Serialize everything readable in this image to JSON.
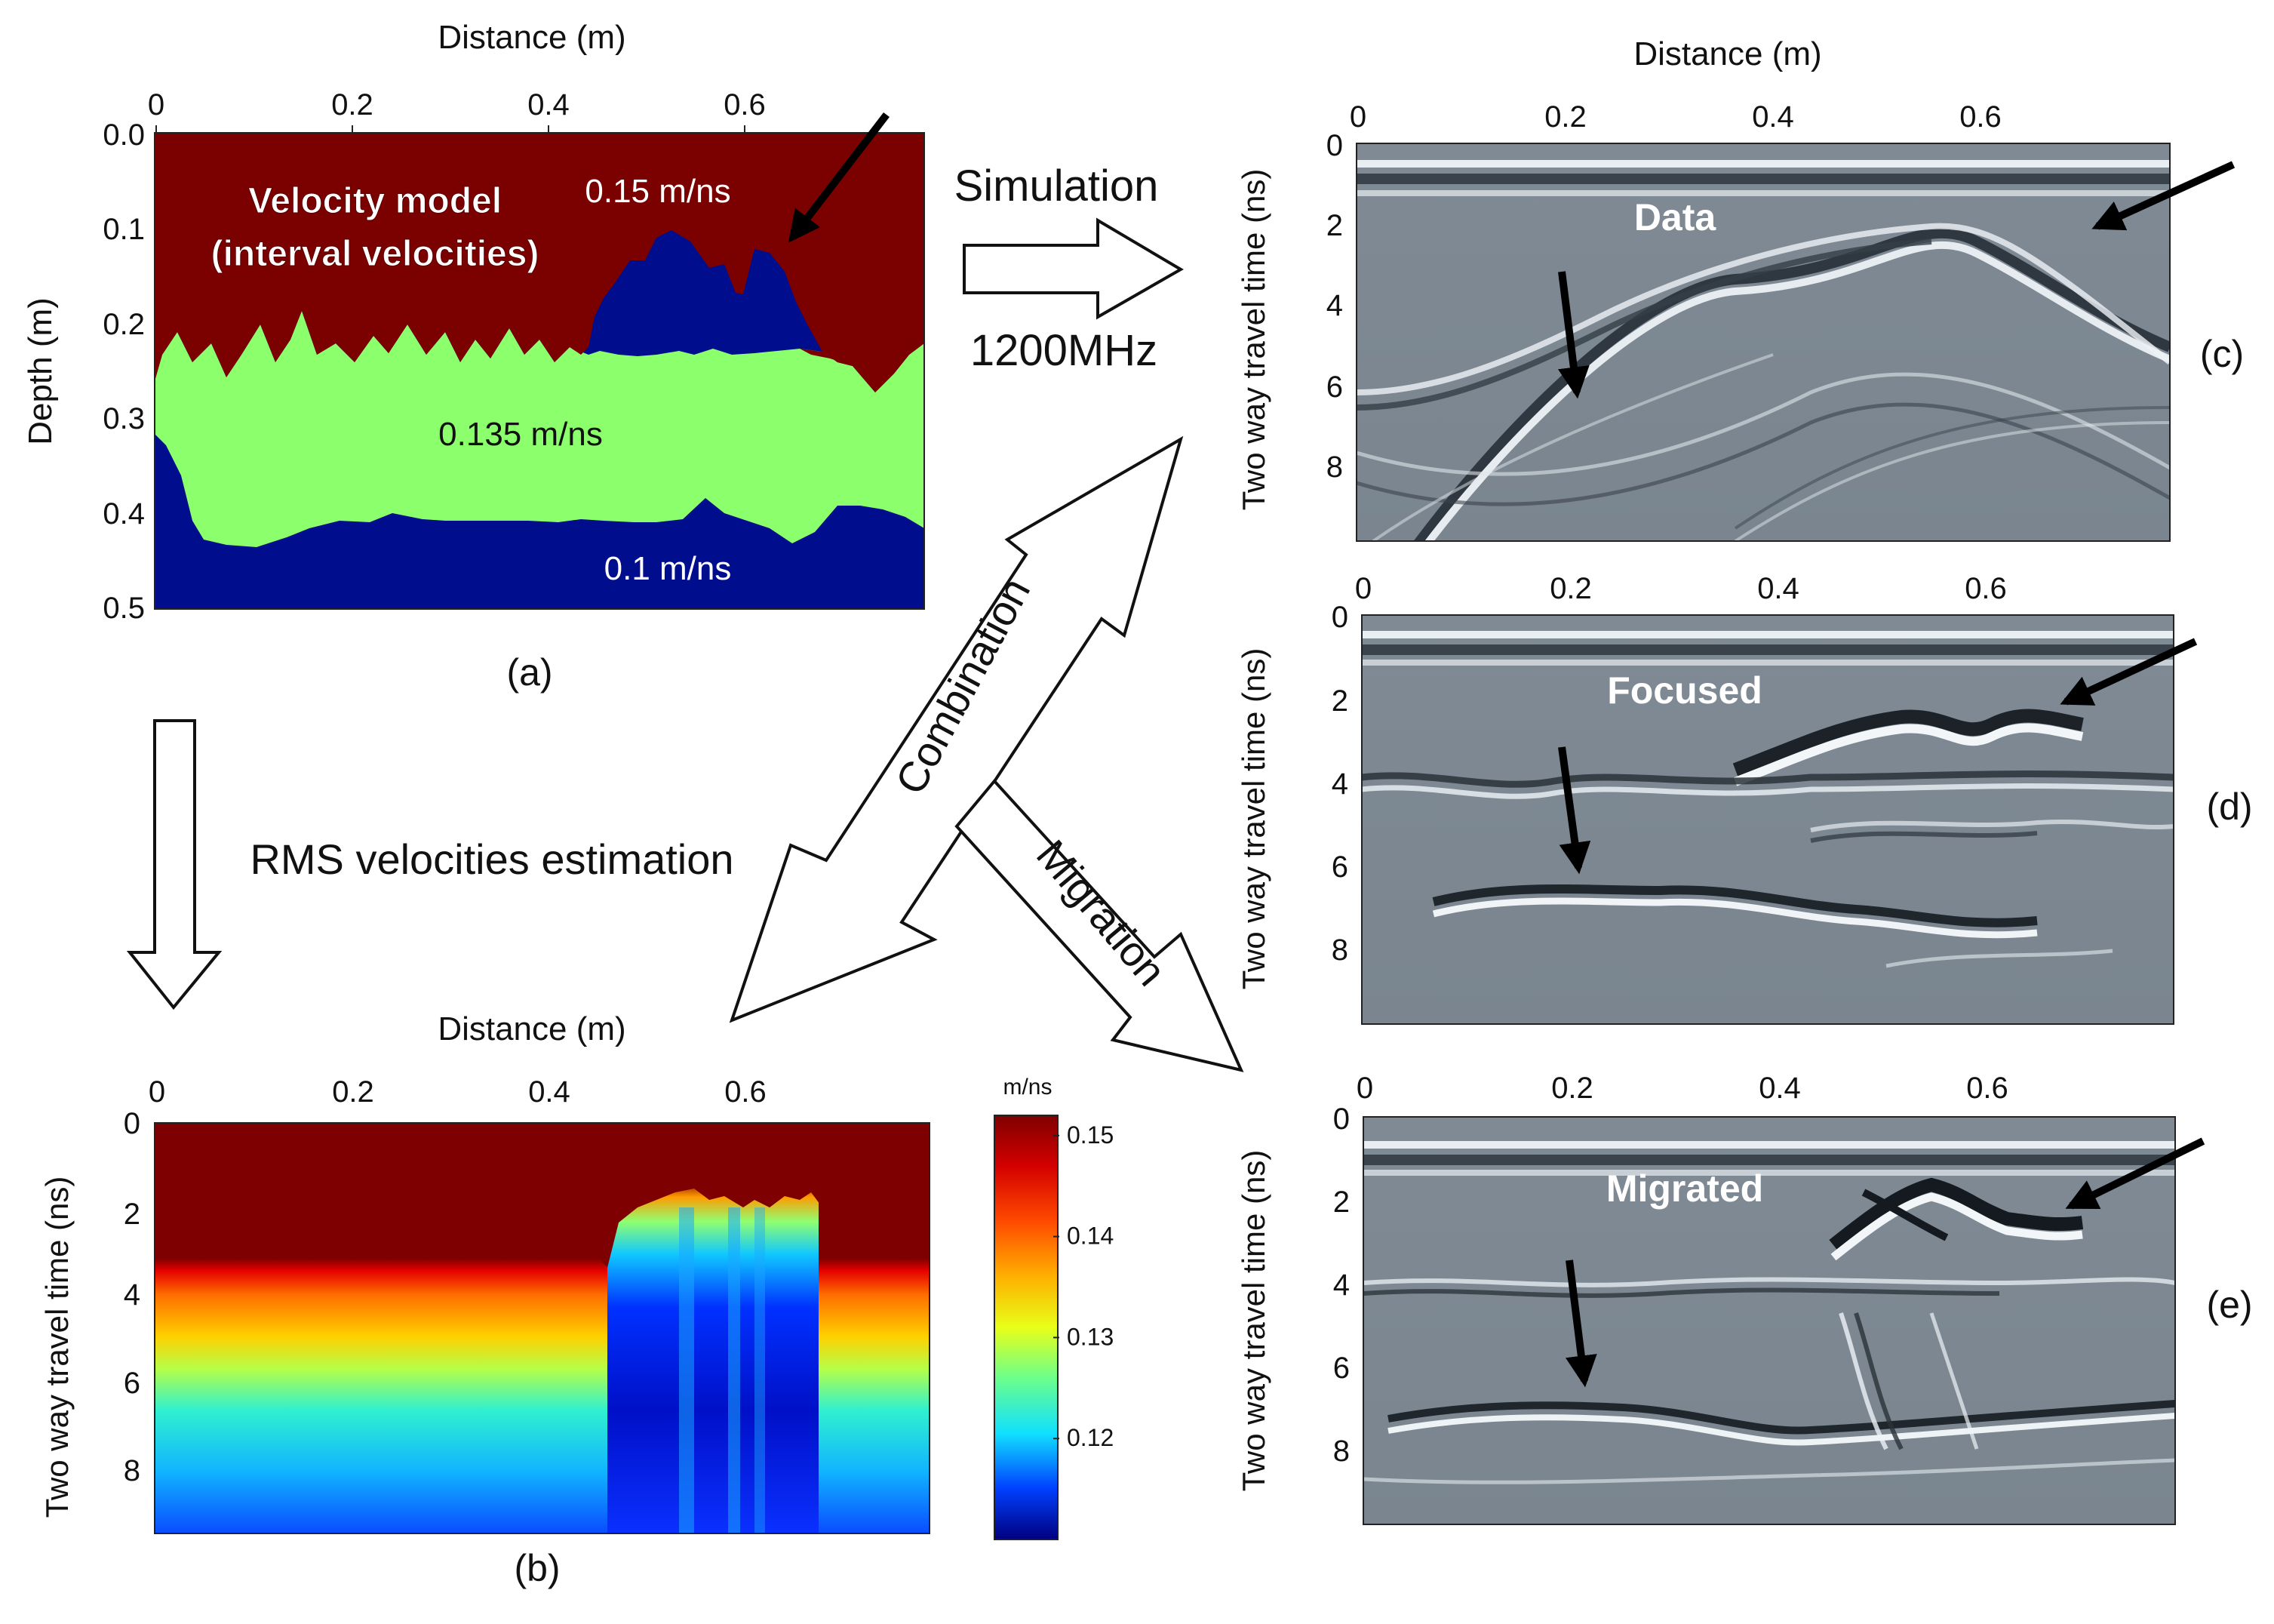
{
  "common": {
    "distance_label": "Distance (m)",
    "twt_label": "Two way travel time (ns)",
    "x_ticks": [
      "0",
      "0.2",
      "0.4",
      "0.6"
    ],
    "t_ticks": [
      "0",
      "2",
      "4",
      "6",
      "8"
    ],
    "t_ticks_b": [
      "0",
      "2",
      "4",
      "6",
      "8"
    ]
  },
  "panel_a": {
    "label": "(a)",
    "depth_label": "Depth (m)",
    "depth_ticks": [
      "0.0",
      "0.1",
      "0.2",
      "0.3",
      "0.4",
      "0.5"
    ],
    "title_line1": "Velocity model",
    "title_line2": "(interval velocities)",
    "v_top": "0.15 m/ns",
    "v_mid": "0.135 m/ns",
    "v_bottom": "0.1 m/ns",
    "colors": {
      "top": "#7b0000",
      "mid": "#8cff6c",
      "low": "#000d8c"
    }
  },
  "panel_b": {
    "label": "(b)",
    "colorbar_unit": "m/ns",
    "colorbar_ticks": [
      "0.15",
      "0.14",
      "0.13",
      "0.12"
    ],
    "colorbar_range": [
      0.11,
      0.152
    ]
  },
  "panel_c": {
    "label": "(c)",
    "title": "Data"
  },
  "panel_d": {
    "label": "(d)",
    "title": "Focused"
  },
  "panel_e": {
    "label": "(e)",
    "title": "Migrated"
  },
  "flow": {
    "simulation": "Simulation",
    "frequency": "1200MHz",
    "rms": "RMS velocities estimation",
    "combination": "Combination",
    "migration": "Migration"
  }
}
